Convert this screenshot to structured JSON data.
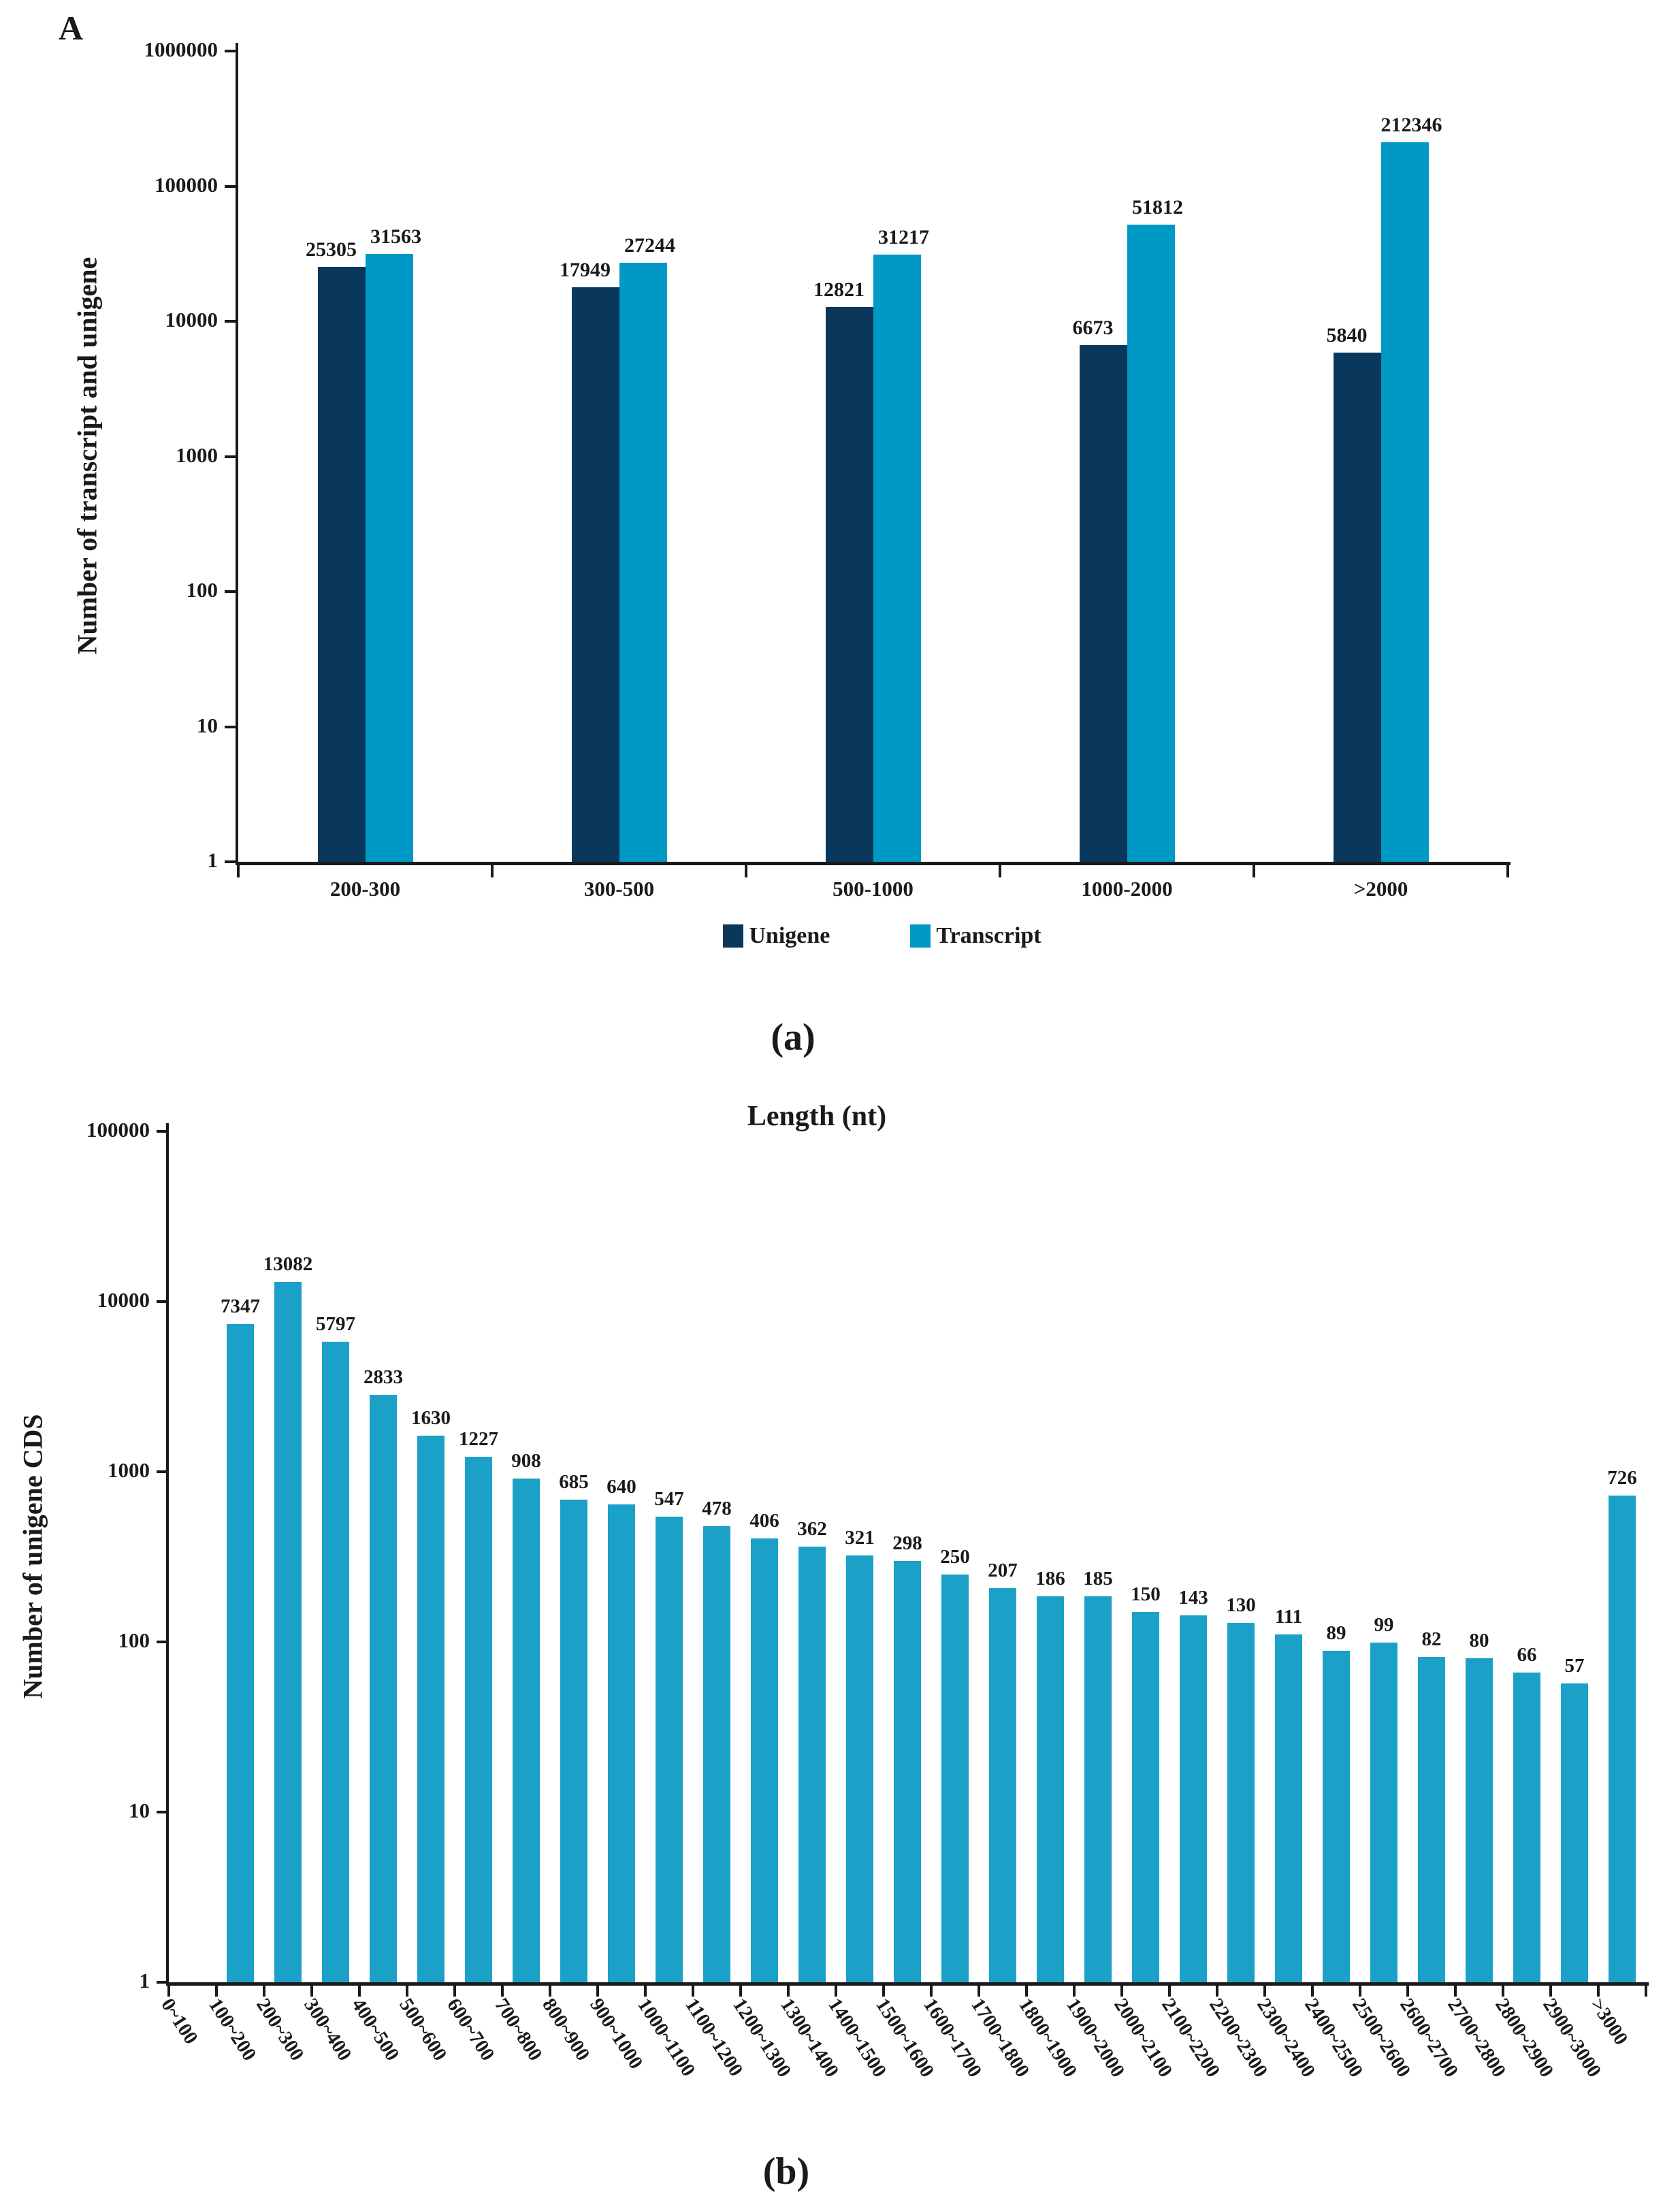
{
  "chart_data": [
    {
      "id": "a",
      "panel_label": "A",
      "caption": "(a)",
      "type": "bar",
      "yscale": "log",
      "title": "",
      "xlabel": "",
      "ylabel": "Number of transcript and unigene",
      "ylim": [
        1,
        1000000
      ],
      "ytick_labels": [
        "1000000",
        "100000",
        "10000",
        "1000",
        "100",
        "10",
        "1"
      ],
      "grid": false,
      "bar_labels": true,
      "legend_position": "bottom",
      "categories": [
        "200-300",
        "300-500",
        "500-1000",
        "1000-2000",
        ">2000"
      ],
      "series": [
        {
          "name": "Unigene",
          "color": "#09385c",
          "values": [
            25305,
            17949,
            12821,
            6673,
            5840
          ]
        },
        {
          "name": "Transcript",
          "color": "#0098c4",
          "values": [
            31563,
            27244,
            31217,
            51812,
            212346
          ]
        }
      ]
    },
    {
      "id": "b",
      "panel_label": "",
      "caption": "(b)",
      "type": "bar",
      "yscale": "log",
      "title": "Length (nt)",
      "xlabel": "",
      "ylabel": "Number of unigene CDS",
      "ylim": [
        1,
        100000
      ],
      "ytick_labels": [
        "100000",
        "10000",
        "1000",
        "100",
        "10",
        "1"
      ],
      "grid": false,
      "bar_labels": true,
      "legend_position": "none",
      "categories": [
        "0~100",
        "100~200",
        "200~300",
        "300~400",
        "400~500",
        "500~600",
        "600~700",
        "700~800",
        "800~900",
        "900~1000",
        "1000~1100",
        "1100~1200",
        "1200~1300",
        "1300~1400",
        "1400~1500",
        "1500~1600",
        "1600~1700",
        "1700~1800",
        "1800~1900",
        "1900~2000",
        "2000~2100",
        "2100~2200",
        "2200~2300",
        "2300~2400",
        "2400~2500",
        "2500~2600",
        "2600~2700",
        "2700~2800",
        "2800~2900",
        "2900~3000",
        ">3000"
      ],
      "series": [
        {
          "name": "unigene CDS",
          "color": "#1ba1c7",
          "values": [
            0,
            7347,
            13082,
            5797,
            2833,
            1630,
            1227,
            908,
            685,
            640,
            547,
            478,
            406,
            362,
            321,
            298,
            250,
            207,
            186,
            185,
            150,
            143,
            130,
            111,
            89,
            99,
            82,
            80,
            66,
            57,
            726
          ]
        }
      ]
    }
  ]
}
